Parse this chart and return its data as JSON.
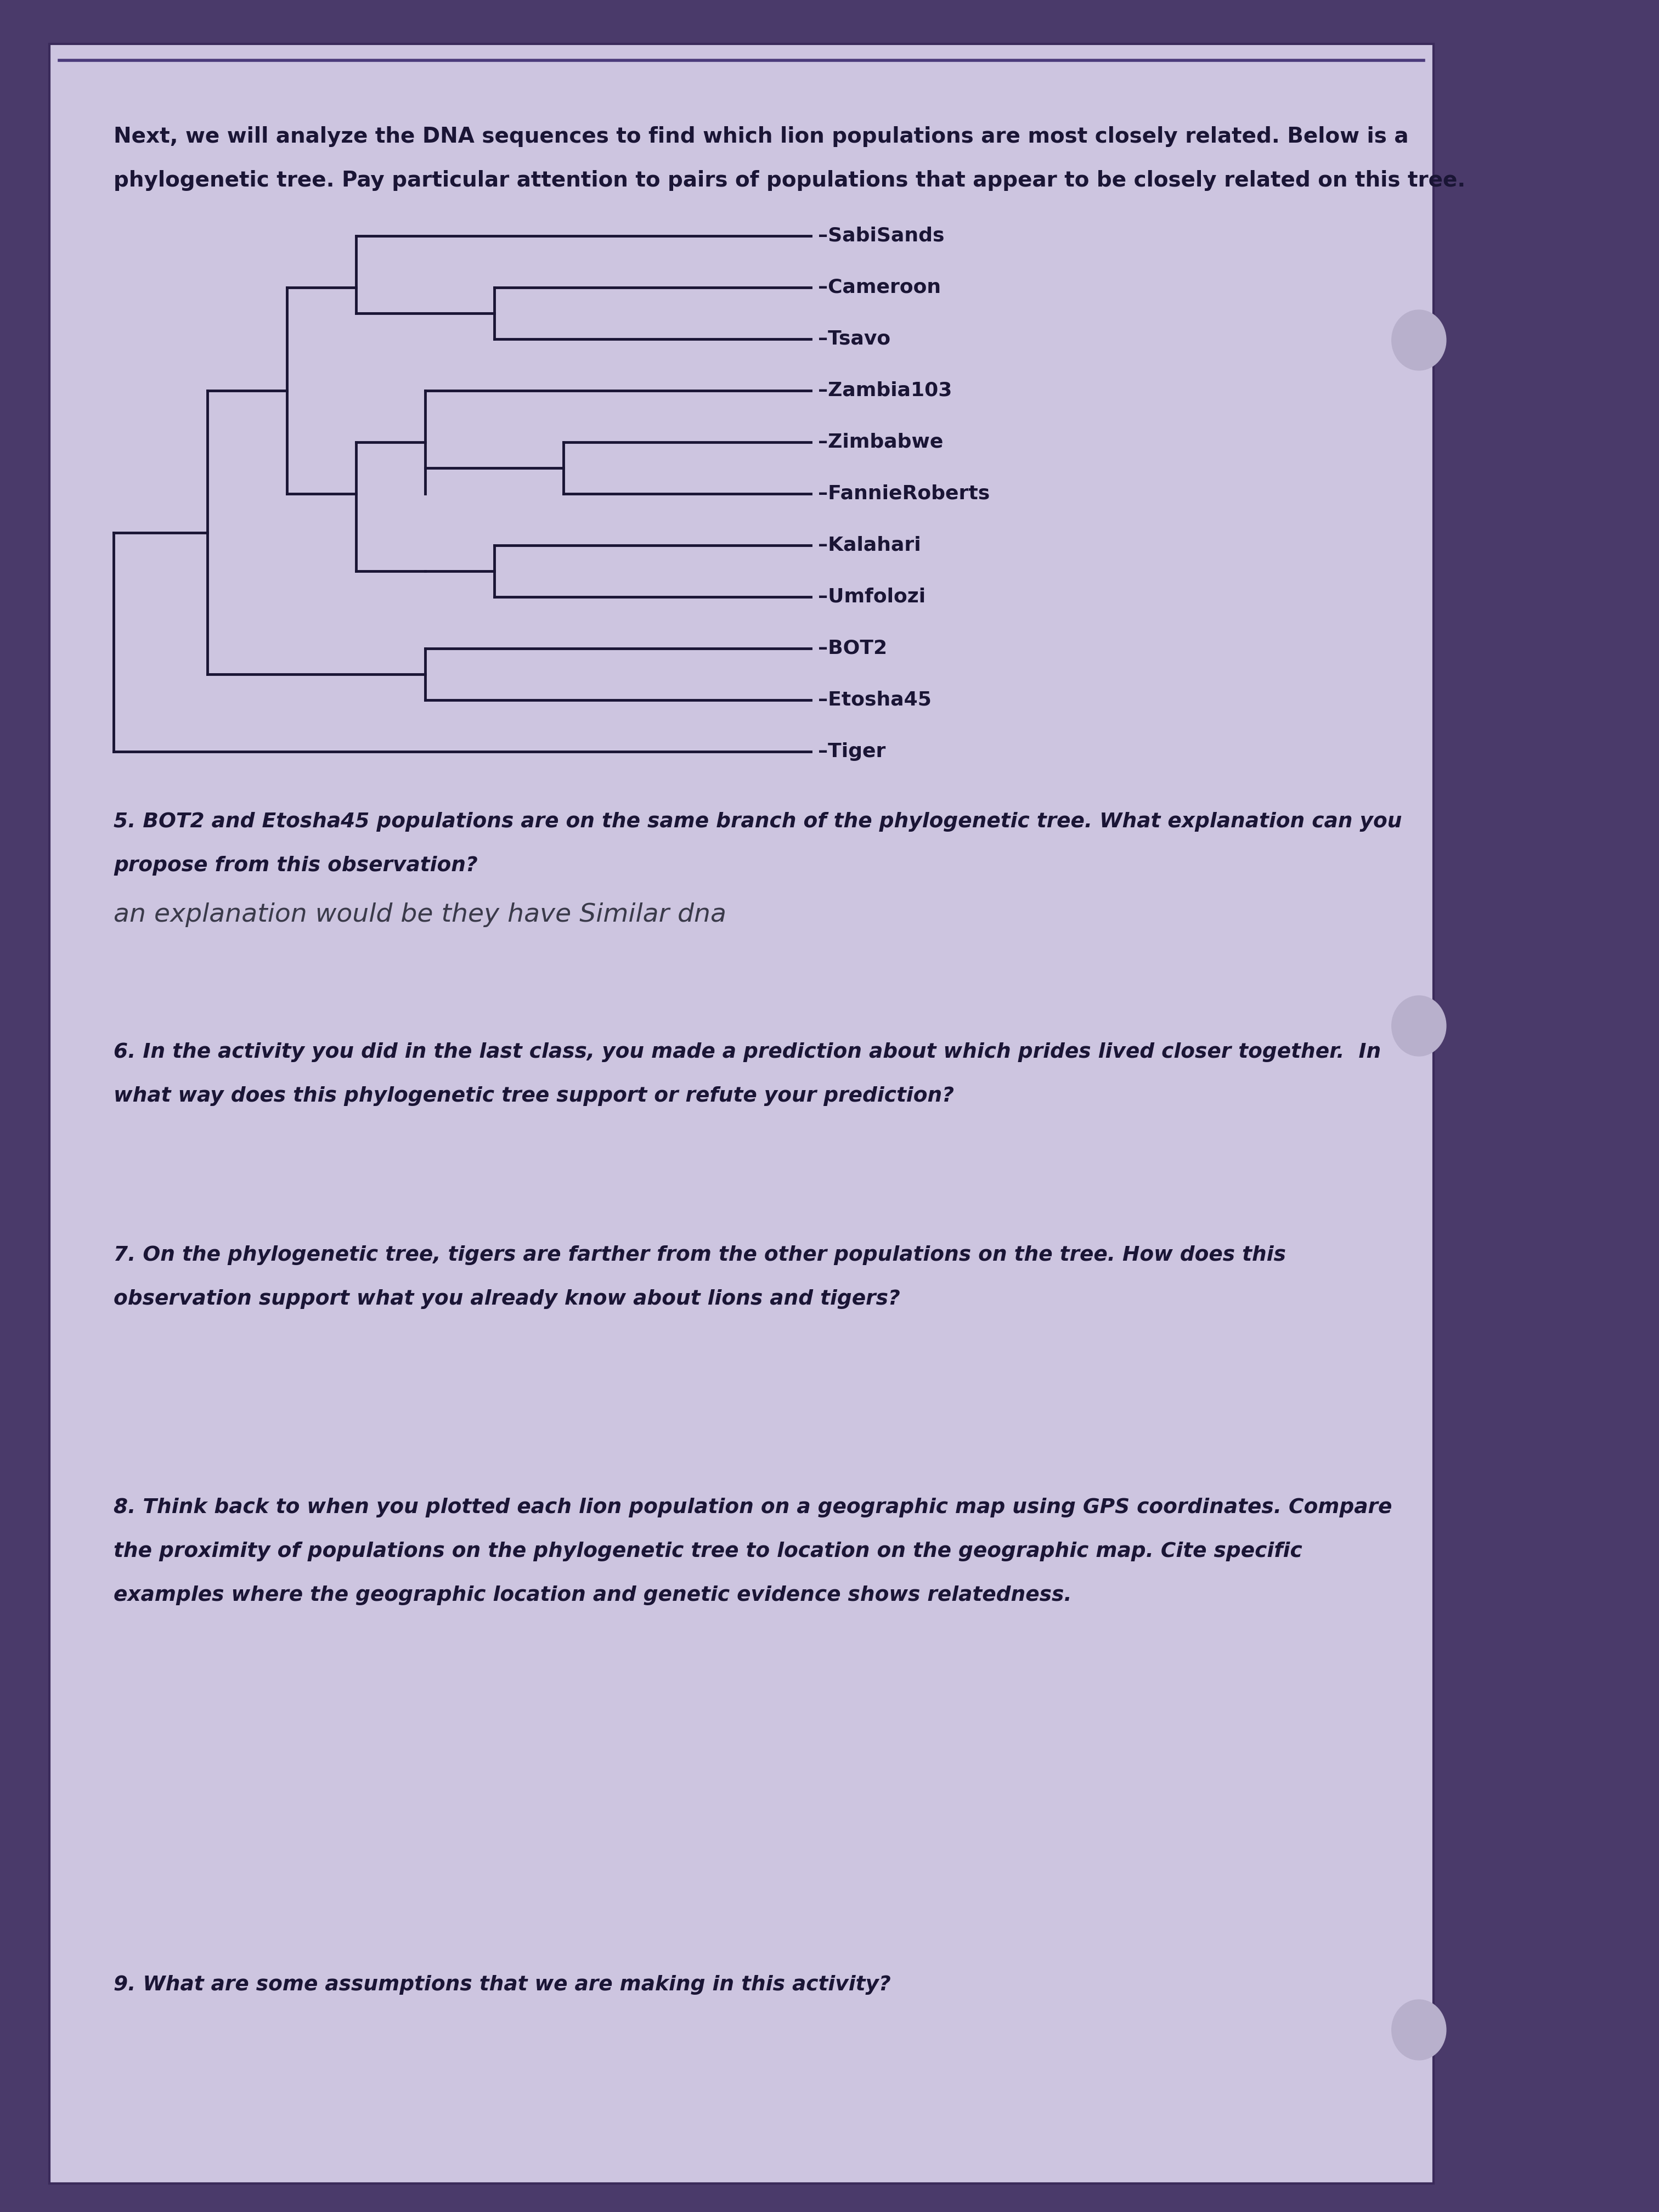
{
  "page_bg": "#4a3a6a",
  "paper_bg": "#cdc5e0",
  "intro_text_line1": "Next, we will analyze the DNA sequences to find which lion populations are most closely related. Below is a",
  "intro_text_line2": "phylogenetic tree. Pay particular attention to pairs of populations that appear to be closely related on this tree.",
  "tree_labels": [
    "SabiSands",
    "Cameroon",
    "Tsavo",
    "Zambia103",
    "Zimbabwe",
    "FannieRoberts",
    "Kalahari",
    "Umfolozi",
    "BOT2",
    "Etosha45",
    "Tiger"
  ],
  "q5_line1": "5. BOT2 and Etosha45 populations are on the same branch of the phylogenetic tree. What explanation can you",
  "q5_line2": "propose from this observation?",
  "q5_hw1": "an explanation would be they have Similar dna",
  "q6_line1": "6. In the activity you did in the last class, you made a prediction about which prides lived closer together.  In",
  "q6_line2": "what way does this phylogenetic tree support or refute your prediction?",
  "q7_line1": "7. On the phylogenetic tree, tigers are farther from the other populations on the tree. How does this",
  "q7_line2": "observation support what you already know about lions and tigers?",
  "q8_line1": "8. Think back to when you plotted each lion population on a geographic map using GPS coordinates. Compare",
  "q8_line2": "the proximity of populations on the phylogenetic tree to location on the geographic map. Cite specific",
  "q8_line3": "examples where the geographic location and genetic evidence shows relatedness.",
  "q9_line1": "9. What are some assumptions that we are making in this activity?",
  "line_color": "#1a1535",
  "text_color": "#1a1535",
  "hw_color": "#3a3a4a",
  "label_color": "#1a1535"
}
